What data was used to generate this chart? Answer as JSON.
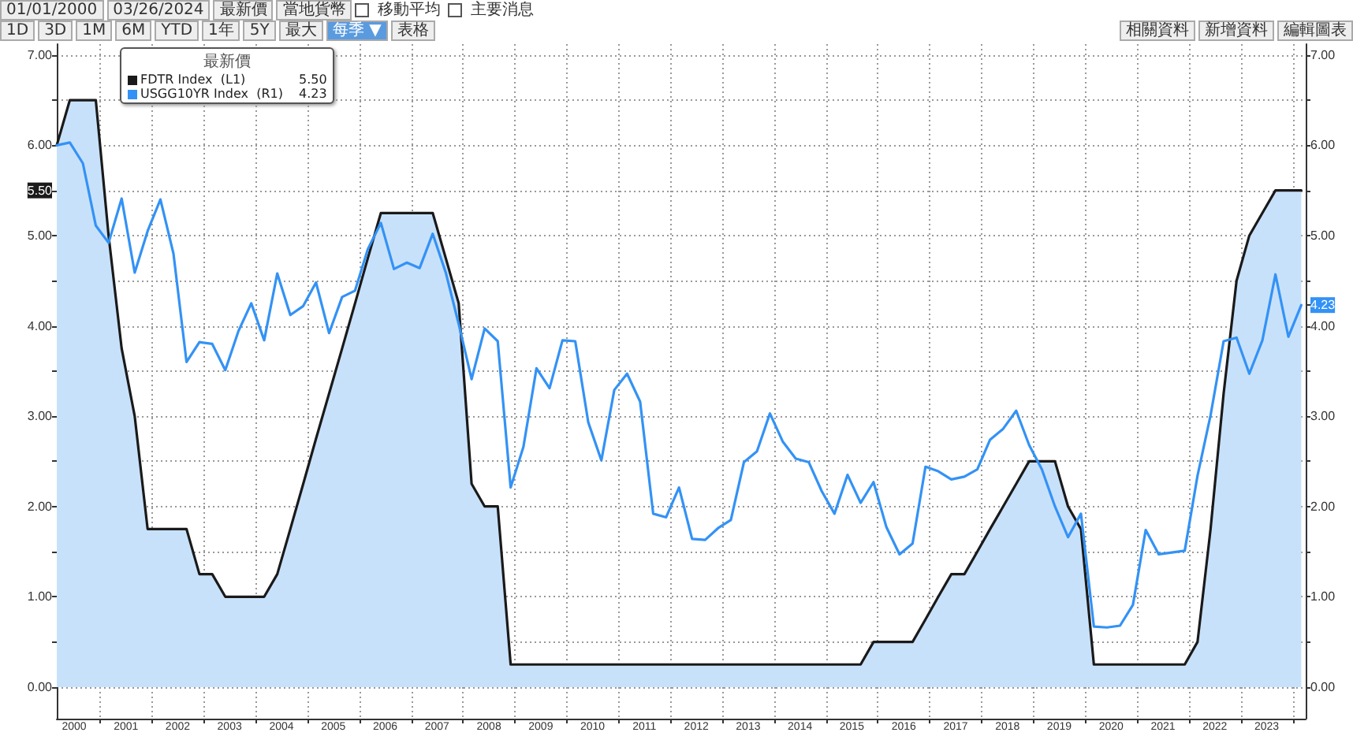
{
  "chart_data": {
    "type": "line",
    "legend_title": "最新價",
    "annotations": [
      "01/01/2000",
      "03/26/2024",
      "最新價",
      "當地貨幣",
      "移動平均",
      "主要消息",
      "1D",
      "3D",
      "1M",
      "6M",
      "YTD",
      "1年",
      "5Y",
      "最大",
      "每季 ▼",
      "表格",
      "相關資料",
      "新增資料",
      "編輯圖表"
    ],
    "x": [
      "2000-03",
      "2000-06",
      "2000-09",
      "2000-12",
      "2001-03",
      "2001-06",
      "2001-09",
      "2001-12",
      "2002-03",
      "2002-06",
      "2002-09",
      "2002-12",
      "2003-03",
      "2003-06",
      "2003-09",
      "2003-12",
      "2004-03",
      "2004-06",
      "2004-09",
      "2004-12",
      "2005-03",
      "2005-06",
      "2005-09",
      "2005-12",
      "2006-03",
      "2006-06",
      "2006-09",
      "2006-12",
      "2007-03",
      "2007-06",
      "2007-09",
      "2007-12",
      "2008-03",
      "2008-06",
      "2008-09",
      "2008-12",
      "2009-03",
      "2009-06",
      "2009-09",
      "2009-12",
      "2010-03",
      "2010-06",
      "2010-09",
      "2010-12",
      "2011-03",
      "2011-06",
      "2011-09",
      "2011-12",
      "2012-03",
      "2012-06",
      "2012-09",
      "2012-12",
      "2013-03",
      "2013-06",
      "2013-09",
      "2013-12",
      "2014-03",
      "2014-06",
      "2014-09",
      "2014-12",
      "2015-03",
      "2015-06",
      "2015-09",
      "2015-12",
      "2016-03",
      "2016-06",
      "2016-09",
      "2016-12",
      "2017-03",
      "2017-06",
      "2017-09",
      "2017-12",
      "2018-03",
      "2018-06",
      "2018-09",
      "2018-12",
      "2019-03",
      "2019-06",
      "2019-09",
      "2019-12",
      "2020-03",
      "2020-06",
      "2020-09",
      "2020-12",
      "2021-03",
      "2021-06",
      "2021-09",
      "2021-12",
      "2022-03",
      "2022-06",
      "2022-09",
      "2022-12",
      "2023-03",
      "2023-06",
      "2023-09",
      "2023-12",
      "2024-03"
    ],
    "series": [
      {
        "name": "FDTR Index  (L1)",
        "type": "area",
        "color": "#1a1a1a",
        "values": [
          6.0,
          6.5,
          6.5,
          6.5,
          5.0,
          3.75,
          3.0,
          1.75,
          1.75,
          1.75,
          1.75,
          1.25,
          1.25,
          1.0,
          1.0,
          1.0,
          1.0,
          1.25,
          1.75,
          2.25,
          2.75,
          3.25,
          3.75,
          4.25,
          4.75,
          5.25,
          5.25,
          5.25,
          5.25,
          5.25,
          4.75,
          4.25,
          2.25,
          2.0,
          2.0,
          0.25,
          0.25,
          0.25,
          0.25,
          0.25,
          0.25,
          0.25,
          0.25,
          0.25,
          0.25,
          0.25,
          0.25,
          0.25,
          0.25,
          0.25,
          0.25,
          0.25,
          0.25,
          0.25,
          0.25,
          0.25,
          0.25,
          0.25,
          0.25,
          0.25,
          0.25,
          0.25,
          0.25,
          0.5,
          0.5,
          0.5,
          0.5,
          0.75,
          1.0,
          1.25,
          1.25,
          1.5,
          1.75,
          2.0,
          2.25,
          2.5,
          2.5,
          2.5,
          2.0,
          1.75,
          0.25,
          0.25,
          0.25,
          0.25,
          0.25,
          0.25,
          0.25,
          0.25,
          0.5,
          1.75,
          3.25,
          4.5,
          5.0,
          5.25,
          5.5,
          5.5,
          5.5
        ]
      },
      {
        "name": "USGG10YR Index  (R1)",
        "axis": "y2",
        "color": "#3392f5",
        "values": [
          6.0,
          6.03,
          5.8,
          5.11,
          4.92,
          5.41,
          4.59,
          5.05,
          5.4,
          4.8,
          3.6,
          3.82,
          3.8,
          3.51,
          3.94,
          4.25,
          3.84,
          4.58,
          4.12,
          4.22,
          4.48,
          3.92,
          4.32,
          4.39,
          4.85,
          5.14,
          4.63,
          4.7,
          4.64,
          5.02,
          4.59,
          4.02,
          3.41,
          3.97,
          3.83,
          2.21,
          2.66,
          3.53,
          3.31,
          3.84,
          3.83,
          2.93,
          2.51,
          3.29,
          3.47,
          3.16,
          1.92,
          1.88,
          2.21,
          1.64,
          1.63,
          1.76,
          1.85,
          2.49,
          2.61,
          3.03,
          2.72,
          2.53,
          2.49,
          2.17,
          1.92,
          2.35,
          2.04,
          2.27,
          1.77,
          1.47,
          1.59,
          2.44,
          2.39,
          2.3,
          2.33,
          2.41,
          2.74,
          2.86,
          3.06,
          2.68,
          2.41,
          2.0,
          1.66,
          1.92,
          0.67,
          0.66,
          0.68,
          0.91,
          1.74,
          1.47,
          1.49,
          1.51,
          2.34,
          3.01,
          3.83,
          3.87,
          3.47,
          3.84,
          4.57,
          3.88,
          4.23
        ]
      }
    ],
    "xlim": [
      "2000-03",
      "2024-04"
    ],
    "xticks": [
      {
        "value": "2000-07",
        "label": "2000"
      },
      {
        "value": "2001-01",
        "label": null
      },
      {
        "value": "2001-07",
        "label": "2001"
      },
      {
        "value": "2002-01",
        "label": null
      },
      {
        "value": "2002-07",
        "label": "2002"
      },
      {
        "value": "2003-01",
        "label": null
      },
      {
        "value": "2003-07",
        "label": "2003"
      },
      {
        "value": "2004-01",
        "label": null
      },
      {
        "value": "2004-07",
        "label": "2004"
      },
      {
        "value": "2005-01",
        "label": null
      },
      {
        "value": "2005-07",
        "label": "2005"
      },
      {
        "value": "2006-01",
        "label": null
      },
      {
        "value": "2006-07",
        "label": "2006"
      },
      {
        "value": "2007-01",
        "label": null
      },
      {
        "value": "2007-07",
        "label": "2007"
      },
      {
        "value": "2008-01",
        "label": null
      },
      {
        "value": "2008-07",
        "label": "2008"
      },
      {
        "value": "2009-01",
        "label": null
      },
      {
        "value": "2009-07",
        "label": "2009"
      },
      {
        "value": "2010-01",
        "label": null
      },
      {
        "value": "2010-07",
        "label": "2010"
      },
      {
        "value": "2011-01",
        "label": null
      },
      {
        "value": "2011-07",
        "label": "2011"
      },
      {
        "value": "2012-01",
        "label": null
      },
      {
        "value": "2012-07",
        "label": "2012"
      },
      {
        "value": "2013-01",
        "label": null
      },
      {
        "value": "2013-07",
        "label": "2013"
      },
      {
        "value": "2014-01",
        "label": null
      },
      {
        "value": "2014-07",
        "label": "2014"
      },
      {
        "value": "2015-01",
        "label": null
      },
      {
        "value": "2015-07",
        "label": "2015"
      },
      {
        "value": "2016-01",
        "label": null
      },
      {
        "value": "2016-07",
        "label": "2016"
      },
      {
        "value": "2017-01",
        "label": null
      },
      {
        "value": "2017-07",
        "label": "2017"
      },
      {
        "value": "2018-01",
        "label": null
      },
      {
        "value": "2018-07",
        "label": "2018"
      },
      {
        "value": "2019-01",
        "label": null
      },
      {
        "value": "2019-07",
        "label": "2019"
      },
      {
        "value": "2020-01",
        "label": null
      },
      {
        "value": "2020-07",
        "label": "2020"
      },
      {
        "value": "2021-01",
        "label": null
      },
      {
        "value": "2021-07",
        "label": "2021"
      },
      {
        "value": "2022-01",
        "label": null
      },
      {
        "value": "2022-07",
        "label": "2022"
      },
      {
        "value": "2023-01",
        "label": null
      },
      {
        "value": "2023-07",
        "label": "2023"
      },
      {
        "value": "2024-01",
        "label": null
      }
    ],
    "ylim": [
      -0.35,
      7.12
    ],
    "yticks": [
      {
        "value": 0,
        "label": "0.00"
      },
      {
        "value": 0.5,
        "label": null
      },
      {
        "value": 1,
        "label": "1.00"
      },
      {
        "value": 1.5,
        "label": null
      },
      {
        "value": 2,
        "label": "2.00"
      },
      {
        "value": 2.5,
        "label": null
      },
      {
        "value": 3,
        "label": "3.00"
      },
      {
        "value": 3.5,
        "label": null
      },
      {
        "value": 4,
        "label": "4.00"
      },
      {
        "value": 4.5,
        "label": null
      },
      {
        "value": 5,
        "label": "5.00"
      },
      {
        "value": 5.5,
        "label": "5.50"
      },
      {
        "value": 6,
        "label": "6.00"
      },
      {
        "value": 6.5,
        "label": null
      },
      {
        "value": 7,
        "label": "7.00"
      }
    ],
    "y2lim": [
      -0.35,
      7.12
    ],
    "y2ticks": [
      {
        "value": 0,
        "label": "0.00"
      },
      {
        "value": 0.5,
        "label": null
      },
      {
        "value": 1,
        "label": "1.00"
      },
      {
        "value": 1.5,
        "label": null
      },
      {
        "value": 2,
        "label": "2.00"
      },
      {
        "value": 2.5,
        "label": null
      },
      {
        "value": 3,
        "label": "3.00"
      },
      {
        "value": 3.5,
        "label": null
      },
      {
        "value": 4,
        "label": "4.00"
      },
      {
        "value": 4.23,
        "label": "4.23"
      },
      {
        "value": 4.5,
        "label": null
      },
      {
        "value": 5,
        "label": "5.00"
      },
      {
        "value": 5.5,
        "label": null
      },
      {
        "value": 6,
        "label": "6.00"
      },
      {
        "value": 6.5,
        "label": null
      },
      {
        "value": 7,
        "label": "7.00"
      }
    ],
    "grid": true,
    "legend": "top left",
    "marker": "none",
    "line_style": "solid"
  }
}
